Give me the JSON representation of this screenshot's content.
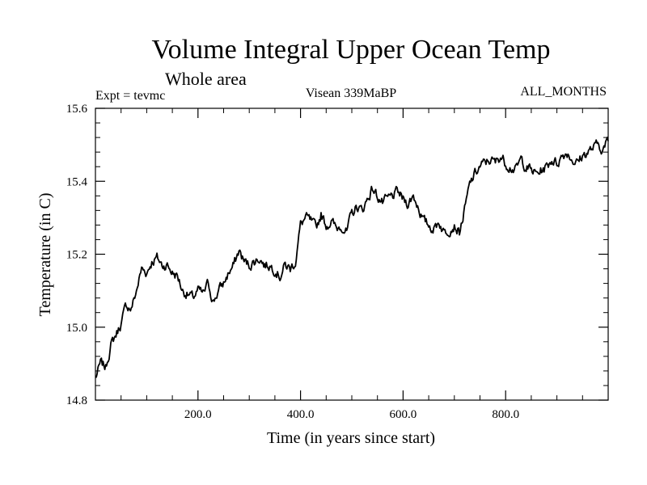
{
  "chart_data": {
    "type": "line",
    "title": "Volume Integral Upper Ocean Temp",
    "subtitle": "Whole area",
    "annotations": {
      "left": "Expt = tevmc",
      "center": "Visean 339MaBP",
      "right": "ALL_MONTHS"
    },
    "xlabel": "Time (in years since start)",
    "ylabel": "Temperature (in C)",
    "xlim": [
      0,
      1000
    ],
    "ylim": [
      14.8,
      15.6
    ],
    "x_ticks": [
      200,
      400,
      600,
      800
    ],
    "x_tick_labels": [
      "200.0",
      "400.0",
      "600.0",
      "800.0"
    ],
    "y_ticks": [
      14.8,
      15.0,
      15.2,
      15.4,
      15.6
    ],
    "y_tick_labels": [
      "14.8",
      "15.0",
      "15.2",
      "15.4",
      "15.6"
    ],
    "grid": false,
    "series": [
      {
        "name": "Temperature",
        "color": "#000000",
        "x": [
          0,
          10,
          20,
          30,
          40,
          50,
          60,
          70,
          80,
          90,
          100,
          110,
          120,
          130,
          140,
          150,
          160,
          170,
          180,
          190,
          200,
          210,
          220,
          230,
          240,
          250,
          260,
          270,
          280,
          290,
          300,
          310,
          320,
          330,
          340,
          350,
          360,
          370,
          380,
          390,
          400,
          410,
          420,
          430,
          440,
          450,
          460,
          470,
          480,
          490,
          500,
          510,
          520,
          530,
          540,
          550,
          560,
          570,
          580,
          590,
          600,
          610,
          620,
          630,
          640,
          650,
          660,
          670,
          680,
          690,
          700,
          710,
          720,
          730,
          740,
          750,
          760,
          770,
          780,
          790,
          800,
          810,
          820,
          830,
          840,
          850,
          860,
          870,
          880,
          890,
          900,
          910,
          920,
          930,
          940,
          950,
          960,
          970,
          980,
          990,
          1000
        ],
        "values": [
          14.86,
          14.9,
          14.89,
          14.95,
          14.98,
          15.01,
          15.06,
          15.05,
          15.1,
          15.16,
          15.15,
          15.18,
          15.19,
          15.17,
          15.17,
          15.15,
          15.14,
          15.1,
          15.09,
          15.08,
          15.1,
          15.09,
          15.12,
          15.07,
          15.1,
          15.12,
          15.15,
          15.17,
          15.21,
          15.18,
          15.17,
          15.18,
          15.19,
          15.17,
          15.17,
          15.16,
          15.14,
          15.17,
          15.16,
          15.18,
          15.28,
          15.3,
          15.29,
          15.27,
          15.31,
          15.28,
          15.29,
          15.27,
          15.28,
          15.26,
          15.31,
          15.33,
          15.32,
          15.35,
          15.38,
          15.36,
          15.34,
          15.35,
          15.36,
          15.37,
          15.35,
          15.34,
          15.36,
          15.33,
          15.29,
          15.28,
          15.27,
          15.29,
          15.26,
          15.27,
          15.28,
          15.26,
          15.32,
          15.39,
          15.42,
          15.44,
          15.45,
          15.46,
          15.45,
          15.47,
          15.45,
          15.44,
          15.43,
          15.46,
          15.44,
          15.43,
          15.42,
          15.43,
          15.44,
          15.46,
          15.45,
          15.47,
          15.48,
          15.46,
          15.45,
          15.47,
          15.48,
          15.49,
          15.5,
          15.49,
          15.51
        ]
      }
    ]
  }
}
